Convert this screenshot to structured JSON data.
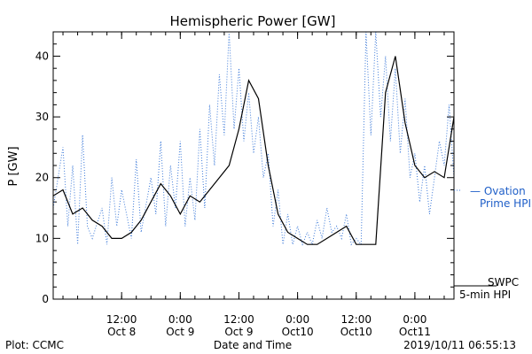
{
  "footer": {
    "left": "Plot: CCMC",
    "right": "2019/10/11 06:55:13"
  },
  "colors": {
    "swpc_line": "#000000",
    "ovation_line": "#3a78d8",
    "ovation_label": "#1f5fc8",
    "axis": "#000000",
    "background": "#ffffff"
  },
  "chart_data": {
    "type": "line",
    "title": "Hemispheric Power [GW]",
    "xlabel": "Date and Time",
    "ylabel": "P [GW]",
    "ylim": [
      0,
      44
    ],
    "xlim": [
      "2019-10-07 22:00",
      "2019-10-11 08:00"
    ],
    "grid": false,
    "legend_position": "right",
    "y_ticks": [
      0,
      10,
      20,
      30,
      40
    ],
    "x_ticks": [
      {
        "time": "2019-10-08 12:00",
        "line1": "12:00",
        "line2": "Oct 8"
      },
      {
        "time": "2019-10-09 00:00",
        "line1": "0:00",
        "line2": "Oct 9"
      },
      {
        "time": "2019-10-09 12:00",
        "line1": "12:00",
        "line2": "Oct 9"
      },
      {
        "time": "2019-10-10 00:00",
        "line1": "0:00",
        "line2": "Oct10"
      },
      {
        "time": "2019-10-10 12:00",
        "line1": "12:00",
        "line2": "Oct10"
      },
      {
        "time": "2019-10-11 00:00",
        "line1": "0:00",
        "line2": "Oct11"
      }
    ],
    "series": [
      {
        "name": "SWPC 5-min HPI",
        "legend_line1": "SWPC",
        "legend_line2": "5-min HPI",
        "style": "solid",
        "color": "#000000",
        "points": [
          [
            "2019-10-07 22:00",
            17
          ],
          [
            "2019-10-08 00:00",
            18
          ],
          [
            "2019-10-08 02:00",
            14
          ],
          [
            "2019-10-08 04:00",
            15
          ],
          [
            "2019-10-08 06:00",
            13
          ],
          [
            "2019-10-08 08:00",
            12
          ],
          [
            "2019-10-08 10:00",
            10
          ],
          [
            "2019-10-08 12:00",
            10
          ],
          [
            "2019-10-08 14:00",
            11
          ],
          [
            "2019-10-08 16:00",
            13
          ],
          [
            "2019-10-08 18:00",
            16
          ],
          [
            "2019-10-08 20:00",
            19
          ],
          [
            "2019-10-08 22:00",
            17
          ],
          [
            "2019-10-09 00:00",
            14
          ],
          [
            "2019-10-09 02:00",
            17
          ],
          [
            "2019-10-09 04:00",
            16
          ],
          [
            "2019-10-09 06:00",
            18
          ],
          [
            "2019-10-09 08:00",
            20
          ],
          [
            "2019-10-09 10:00",
            22
          ],
          [
            "2019-10-09 12:00",
            28
          ],
          [
            "2019-10-09 14:00",
            36
          ],
          [
            "2019-10-09 16:00",
            33
          ],
          [
            "2019-10-09 18:00",
            22
          ],
          [
            "2019-10-09 20:00",
            14
          ],
          [
            "2019-10-09 22:00",
            11
          ],
          [
            "2019-10-10 00:00",
            10
          ],
          [
            "2019-10-10 02:00",
            9
          ],
          [
            "2019-10-10 04:00",
            9
          ],
          [
            "2019-10-10 06:00",
            10
          ],
          [
            "2019-10-10 08:00",
            11
          ],
          [
            "2019-10-10 10:00",
            12
          ],
          [
            "2019-10-10 12:00",
            9
          ],
          [
            "2019-10-10 14:00",
            9
          ],
          [
            "2019-10-10 16:00",
            9
          ],
          [
            "2019-10-10 18:00",
            34
          ],
          [
            "2019-10-10 20:00",
            40
          ],
          [
            "2019-10-10 22:00",
            29
          ],
          [
            "2019-10-11 00:00",
            22
          ],
          [
            "2019-10-11 02:00",
            20
          ],
          [
            "2019-10-11 04:00",
            21
          ],
          [
            "2019-10-11 06:00",
            20
          ],
          [
            "2019-10-11 08:00",
            30
          ]
        ]
      },
      {
        "name": "Ovation Prime HPI",
        "legend_line1": "— Ovation",
        "legend_line2": "Prime HPI",
        "style": "dotted",
        "color": "#3a78d8",
        "points": [
          [
            "2019-10-07 22:00",
            15
          ],
          [
            "2019-10-08 00:00",
            25
          ],
          [
            "2019-10-08 01:00",
            12
          ],
          [
            "2019-10-08 02:00",
            22
          ],
          [
            "2019-10-08 03:00",
            9
          ],
          [
            "2019-10-08 04:00",
            27
          ],
          [
            "2019-10-08 05:00",
            12
          ],
          [
            "2019-10-08 06:00",
            10
          ],
          [
            "2019-10-08 08:00",
            15
          ],
          [
            "2019-10-08 09:00",
            9
          ],
          [
            "2019-10-08 10:00",
            20
          ],
          [
            "2019-10-08 11:00",
            12
          ],
          [
            "2019-10-08 12:00",
            18
          ],
          [
            "2019-10-08 14:00",
            10
          ],
          [
            "2019-10-08 15:00",
            23
          ],
          [
            "2019-10-08 16:00",
            11
          ],
          [
            "2019-10-08 18:00",
            20
          ],
          [
            "2019-10-08 19:00",
            14
          ],
          [
            "2019-10-08 20:00",
            26
          ],
          [
            "2019-10-08 21:00",
            12
          ],
          [
            "2019-10-08 22:00",
            22
          ],
          [
            "2019-10-08 23:00",
            15
          ],
          [
            "2019-10-09 00:00",
            26
          ],
          [
            "2019-10-09 01:00",
            12
          ],
          [
            "2019-10-09 02:00",
            20
          ],
          [
            "2019-10-09 03:00",
            13
          ],
          [
            "2019-10-09 04:00",
            28
          ],
          [
            "2019-10-09 05:00",
            15
          ],
          [
            "2019-10-09 06:00",
            32
          ],
          [
            "2019-10-09 07:00",
            22
          ],
          [
            "2019-10-09 08:00",
            37
          ],
          [
            "2019-10-09 09:00",
            27
          ],
          [
            "2019-10-09 10:00",
            44
          ],
          [
            "2019-10-09 11:00",
            28
          ],
          [
            "2019-10-09 12:00",
            38
          ],
          [
            "2019-10-09 13:00",
            26
          ],
          [
            "2019-10-09 14:00",
            34
          ],
          [
            "2019-10-09 15:00",
            24
          ],
          [
            "2019-10-09 16:00",
            30
          ],
          [
            "2019-10-09 17:00",
            20
          ],
          [
            "2019-10-09 18:00",
            24
          ],
          [
            "2019-10-09 19:00",
            12
          ],
          [
            "2019-10-09 20:00",
            18
          ],
          [
            "2019-10-09 21:00",
            9
          ],
          [
            "2019-10-09 22:00",
            14
          ],
          [
            "2019-10-09 23:00",
            9
          ],
          [
            "2019-10-10 00:00",
            12
          ],
          [
            "2019-10-10 01:00",
            9
          ],
          [
            "2019-10-10 02:00",
            11
          ],
          [
            "2019-10-10 03:00",
            9
          ],
          [
            "2019-10-10 04:00",
            13
          ],
          [
            "2019-10-10 05:00",
            10
          ],
          [
            "2019-10-10 06:00",
            15
          ],
          [
            "2019-10-10 07:00",
            11
          ],
          [
            "2019-10-10 08:00",
            12
          ],
          [
            "2019-10-10 09:00",
            10
          ],
          [
            "2019-10-10 10:00",
            14
          ],
          [
            "2019-10-10 11:00",
            9
          ],
          [
            "2019-10-10 12:00",
            10
          ],
          [
            "2019-10-10 13:00",
            9
          ],
          [
            "2019-10-10 14:00",
            44
          ],
          [
            "2019-10-10 15:00",
            27
          ],
          [
            "2019-10-10 16:00",
            44
          ],
          [
            "2019-10-10 17:00",
            30
          ],
          [
            "2019-10-10 18:00",
            40
          ],
          [
            "2019-10-10 19:00",
            26
          ],
          [
            "2019-10-10 20:00",
            38
          ],
          [
            "2019-10-10 21:00",
            24
          ],
          [
            "2019-10-10 22:00",
            33
          ],
          [
            "2019-10-10 23:00",
            20
          ],
          [
            "2019-10-11 00:00",
            24
          ],
          [
            "2019-10-11 01:00",
            16
          ],
          [
            "2019-10-11 02:00",
            22
          ],
          [
            "2019-10-11 03:00",
            14
          ],
          [
            "2019-10-11 04:00",
            20
          ],
          [
            "2019-10-11 05:00",
            26
          ],
          [
            "2019-10-11 06:00",
            22
          ],
          [
            "2019-10-11 07:00",
            32
          ],
          [
            "2019-10-11 08:00",
            20
          ]
        ]
      }
    ]
  }
}
